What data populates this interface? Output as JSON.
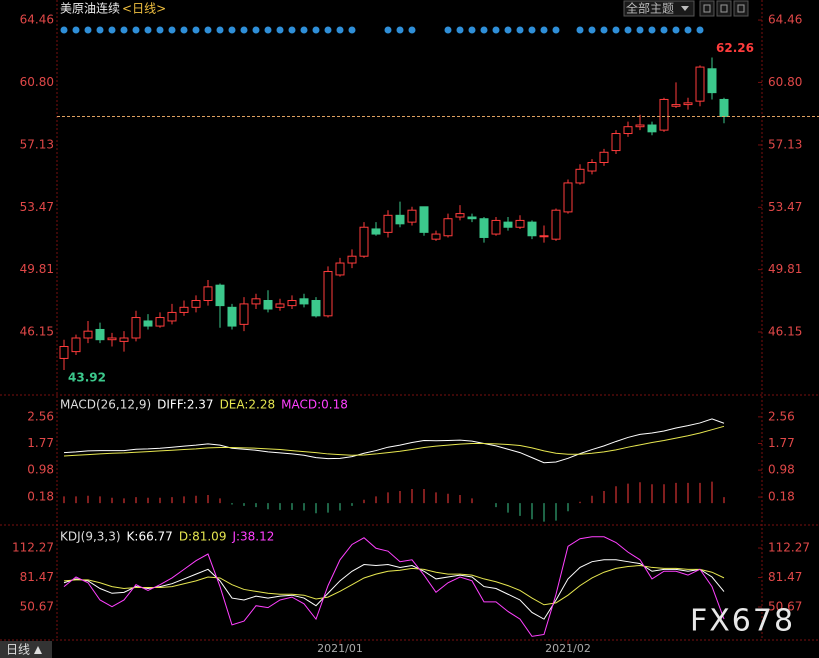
{
  "chart_data": [
    {
      "type": "candlestick",
      "title": "美原油连续",
      "subtitle": "<日线>",
      "categories": [
        null,
        null,
        null,
        null,
        null,
        null,
        null,
        null,
        null,
        null,
        null,
        null,
        null,
        null,
        null,
        null,
        null,
        null,
        null,
        null,
        null,
        null,
        null,
        "2021/01",
        null,
        null,
        null,
        null,
        null,
        null,
        null,
        null,
        null,
        null,
        null,
        null,
        null,
        null,
        null,
        null,
        null,
        null,
        "2021/02",
        null,
        null,
        null,
        null,
        null,
        null,
        null,
        null,
        null,
        null,
        null,
        null,
        null
      ],
      "open": [
        44.6,
        45.0,
        45.8,
        46.3,
        45.7,
        45.6,
        45.8,
        46.8,
        46.5,
        46.8,
        47.3,
        47.6,
        48.0,
        48.9,
        47.6,
        46.6,
        47.8,
        48.0,
        47.6,
        47.7,
        48.1,
        48.0,
        47.1,
        49.5,
        50.2,
        50.6,
        52.2,
        52.0,
        53.0,
        52.6,
        53.5,
        51.6,
        51.8,
        52.9,
        52.9,
        52.8,
        51.9,
        52.6,
        52.3,
        52.6,
        51.8,
        51.6,
        53.2,
        54.9,
        55.6,
        56.1,
        56.8,
        57.8,
        58.2,
        58.3,
        58.0,
        59.4,
        59.5,
        59.7,
        61.6,
        59.8
      ],
      "high": [
        45.7,
        46.0,
        46.8,
        46.7,
        46.1,
        46.2,
        47.4,
        47.2,
        47.3,
        47.8,
        48.0,
        48.3,
        49.2,
        49.0,
        47.8,
        48.2,
        48.4,
        48.6,
        48.1,
        48.3,
        48.4,
        48.2,
        50.0,
        50.5,
        51.0,
        52.6,
        52.6,
        53.3,
        53.8,
        53.5,
        53.5,
        52.1,
        53.1,
        53.6,
        53.1,
        52.9,
        52.9,
        52.9,
        53.0,
        52.7,
        52.4,
        53.4,
        55.1,
        56.0,
        56.3,
        56.9,
        58.0,
        58.5,
        58.9,
        58.5,
        59.9,
        60.8,
        59.9,
        61.8,
        62.26,
        59.9
      ],
      "low": [
        43.92,
        44.8,
        45.5,
        45.5,
        45.3,
        45.0,
        45.6,
        46.3,
        46.4,
        46.6,
        47.1,
        47.3,
        47.7,
        46.4,
        46.3,
        46.2,
        47.5,
        47.3,
        47.4,
        47.5,
        47.6,
        47.0,
        47.0,
        49.4,
        49.9,
        50.5,
        51.8,
        51.7,
        52.3,
        52.4,
        51.8,
        51.5,
        51.7,
        52.7,
        52.6,
        51.4,
        51.8,
        52.1,
        52.2,
        51.6,
        51.4,
        51.5,
        53.1,
        54.8,
        55.4,
        55.9,
        56.6,
        57.6,
        58.0,
        57.7,
        57.9,
        59.3,
        59.2,
        59.4,
        59.8,
        58.4
      ],
      "close": [
        45.3,
        45.8,
        46.2,
        45.7,
        45.8,
        45.8,
        47.0,
        46.5,
        47.0,
        47.3,
        47.6,
        48.0,
        48.8,
        47.7,
        46.5,
        47.8,
        48.1,
        47.5,
        47.8,
        48.0,
        47.8,
        47.1,
        49.7,
        50.2,
        50.6,
        52.3,
        51.9,
        53.0,
        52.5,
        53.3,
        52.0,
        51.9,
        52.8,
        53.1,
        52.8,
        51.7,
        52.7,
        52.3,
        52.7,
        51.8,
        51.8,
        53.3,
        54.9,
        55.7,
        56.1,
        56.7,
        57.8,
        58.2,
        58.3,
        57.9,
        59.8,
        59.5,
        59.6,
        61.7,
        60.2,
        58.8
      ],
      "up_color": "#ff3c3c",
      "down_color": "#3cc88c",
      "last_line_color": "#e0a060",
      "ylim": [
        42.63,
        65.05
      ],
      "yticks": [
        {
          "value": 46.15,
          "label": "46.15"
        },
        {
          "value": 49.81,
          "label": "49.81"
        },
        {
          "value": 53.47,
          "label": "53.47"
        },
        {
          "value": 57.13,
          "label": "57.13"
        },
        {
          "value": 60.8,
          "label": "60.80"
        },
        {
          "value": 64.46,
          "label": "64.46"
        }
      ]
    },
    {
      "type": "macd",
      "title": "MACD(26,12,9)",
      "series": [
        {
          "name": "DIFF:2.37",
          "color": "#ffffff",
          "style": "line",
          "values": [
            1.5,
            1.52,
            1.55,
            1.56,
            1.56,
            1.56,
            1.6,
            1.61,
            1.63,
            1.66,
            1.69,
            1.72,
            1.76,
            1.72,
            1.63,
            1.6,
            1.57,
            1.52,
            1.49,
            1.46,
            1.42,
            1.35,
            1.32,
            1.33,
            1.38,
            1.48,
            1.56,
            1.66,
            1.72,
            1.8,
            1.86,
            1.85,
            1.86,
            1.87,
            1.84,
            1.77,
            1.7,
            1.6,
            1.5,
            1.35,
            1.2,
            1.22,
            1.33,
            1.47,
            1.59,
            1.7,
            1.83,
            1.95,
            2.04,
            2.08,
            2.14,
            2.23,
            2.3,
            2.38,
            2.5,
            2.37
          ]
        },
        {
          "name": "DEA:2.28",
          "color": "#e6e650",
          "style": "line",
          "values": [
            1.4,
            1.42,
            1.44,
            1.46,
            1.48,
            1.49,
            1.51,
            1.53,
            1.55,
            1.57,
            1.59,
            1.61,
            1.64,
            1.65,
            1.65,
            1.64,
            1.63,
            1.61,
            1.59,
            1.56,
            1.53,
            1.5,
            1.46,
            1.44,
            1.42,
            1.43,
            1.46,
            1.5,
            1.54,
            1.59,
            1.65,
            1.69,
            1.72,
            1.75,
            1.77,
            1.77,
            1.76,
            1.74,
            1.71,
            1.64,
            1.55,
            1.48,
            1.45,
            1.45,
            1.48,
            1.52,
            1.58,
            1.66,
            1.73,
            1.8,
            1.86,
            1.93,
            2.0,
            2.08,
            2.18,
            2.28
          ]
        },
        {
          "name": "MACD:0.18",
          "color": "#ff40ff",
          "style": "bar",
          "values": [
            0.2,
            0.2,
            0.22,
            0.2,
            0.16,
            0.14,
            0.18,
            0.16,
            0.16,
            0.18,
            0.2,
            0.22,
            0.24,
            0.14,
            -0.04,
            -0.08,
            -0.12,
            -0.18,
            -0.2,
            -0.2,
            -0.22,
            -0.3,
            -0.28,
            -0.22,
            -0.08,
            0.1,
            0.2,
            0.32,
            0.36,
            0.42,
            0.42,
            0.32,
            0.28,
            0.24,
            0.14,
            0.0,
            -0.12,
            -0.28,
            -0.38,
            -0.48,
            -0.55,
            -0.52,
            -0.24,
            0.04,
            0.22,
            0.36,
            0.5,
            0.58,
            0.62,
            0.56,
            0.56,
            0.6,
            0.6,
            0.6,
            0.64,
            0.18
          ]
        }
      ],
      "up_color": "#ff3c3c",
      "down_color": "#3cc88c",
      "ylim": [
        -0.56,
        3.12
      ],
      "yticks": [
        0.18,
        0.98,
        1.77,
        2.56
      ]
    },
    {
      "type": "line",
      "title": "KDJ(9,3,3)",
      "series": [
        {
          "name": "K:66.77",
          "color": "#ffffff",
          "values": [
            76,
            80,
            78,
            70,
            65,
            66,
            72,
            70,
            72,
            75,
            80,
            85,
            90,
            78,
            60,
            58,
            62,
            60,
            62,
            63,
            60,
            52,
            65,
            78,
            88,
            95,
            94,
            95,
            92,
            94,
            88,
            80,
            82,
            84,
            82,
            72,
            70,
            64,
            58,
            45,
            38,
            58,
            80,
            92,
            98,
            100,
            100,
            98,
            96,
            88,
            90,
            90,
            88,
            90,
            82,
            66.77
          ]
        },
        {
          "name": "D:81.09",
          "color": "#e6e650",
          "values": [
            78,
            79,
            79,
            76,
            72,
            70,
            71,
            71,
            71,
            72,
            75,
            78,
            82,
            81,
            74,
            69,
            67,
            65,
            64,
            64,
            63,
            59,
            61,
            67,
            74,
            81,
            85,
            88,
            89,
            91,
            90,
            87,
            85,
            85,
            84,
            80,
            77,
            73,
            68,
            60,
            53,
            55,
            63,
            73,
            81,
            87,
            91,
            93,
            94,
            92,
            91,
            91,
            90,
            90,
            87,
            81.09
          ]
        },
        {
          "name": "J:38.12",
          "color": "#ff40ff",
          "values": [
            72,
            82,
            76,
            58,
            51,
            58,
            74,
            68,
            74,
            81,
            90,
            99,
            106,
            72,
            32,
            36,
            52,
            50,
            58,
            61,
            54,
            38,
            73,
            100,
            116,
            123,
            112,
            109,
            98,
            100,
            84,
            66,
            76,
            82,
            78,
            56,
            56,
            46,
            38,
            20,
            22,
            64,
            114,
            122,
            124,
            124,
            118,
            108,
            100,
            80,
            88,
            88,
            84,
            90,
            72,
            38.12
          ]
        }
      ],
      "ylim": [
        16.2,
        131.1
      ],
      "yticks": [
        50.67,
        81.47,
        112.27
      ]
    }
  ],
  "toolbar": {
    "theme_button": "全部主题",
    "period": "日线"
  },
  "watermark": "FX678"
}
